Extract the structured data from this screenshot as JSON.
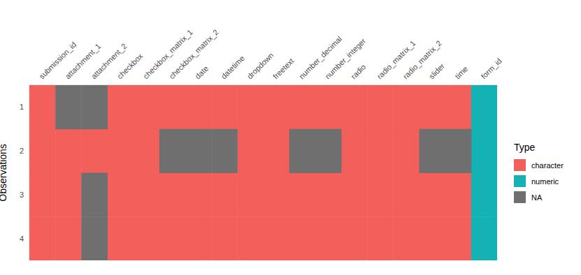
{
  "chart_data": {
    "type": "heatmap",
    "categories": [
      "submission_id",
      "attachment_1",
      "attachment_2",
      "checkbox",
      "checkbox_matrix_1",
      "checkbox_matrix_2",
      "date",
      "datetime",
      "dropdown",
      "freetext",
      "number_decimal",
      "number_integer",
      "radio",
      "radio_matrix_1",
      "radio_matrix_2",
      "slider",
      "time",
      "form_id"
    ],
    "y_label": "Observations",
    "rows": [
      1,
      2,
      3,
      4
    ],
    "ylim": [
      0.5,
      4.5
    ],
    "yticks": [
      1,
      2,
      3,
      4
    ],
    "grid": false,
    "legend": "right",
    "legend_title": "Type",
    "series": [
      {
        "name": "character",
        "color": "#F35F5B"
      },
      {
        "name": "numeric",
        "color": "#15B2B5"
      },
      {
        "name": "NA",
        "color": "#6F6F6F"
      }
    ],
    "cells": [
      [
        "character",
        "NA",
        "NA",
        "character",
        "character",
        "character",
        "character",
        "character",
        "character",
        "character",
        "character",
        "character",
        "character",
        "character",
        "character",
        "character",
        "character",
        "numeric"
      ],
      [
        "character",
        "character",
        "character",
        "character",
        "character",
        "NA",
        "NA",
        "NA",
        "character",
        "character",
        "NA",
        "NA",
        "character",
        "character",
        "character",
        "NA",
        "NA",
        "numeric"
      ],
      [
        "character",
        "character",
        "NA",
        "character",
        "character",
        "character",
        "character",
        "character",
        "character",
        "character",
        "character",
        "character",
        "character",
        "character",
        "character",
        "character",
        "character",
        "numeric"
      ],
      [
        "character",
        "character",
        "NA",
        "character",
        "character",
        "character",
        "character",
        "character",
        "character",
        "character",
        "character",
        "character",
        "character",
        "character",
        "character",
        "character",
        "character",
        "numeric"
      ]
    ]
  }
}
